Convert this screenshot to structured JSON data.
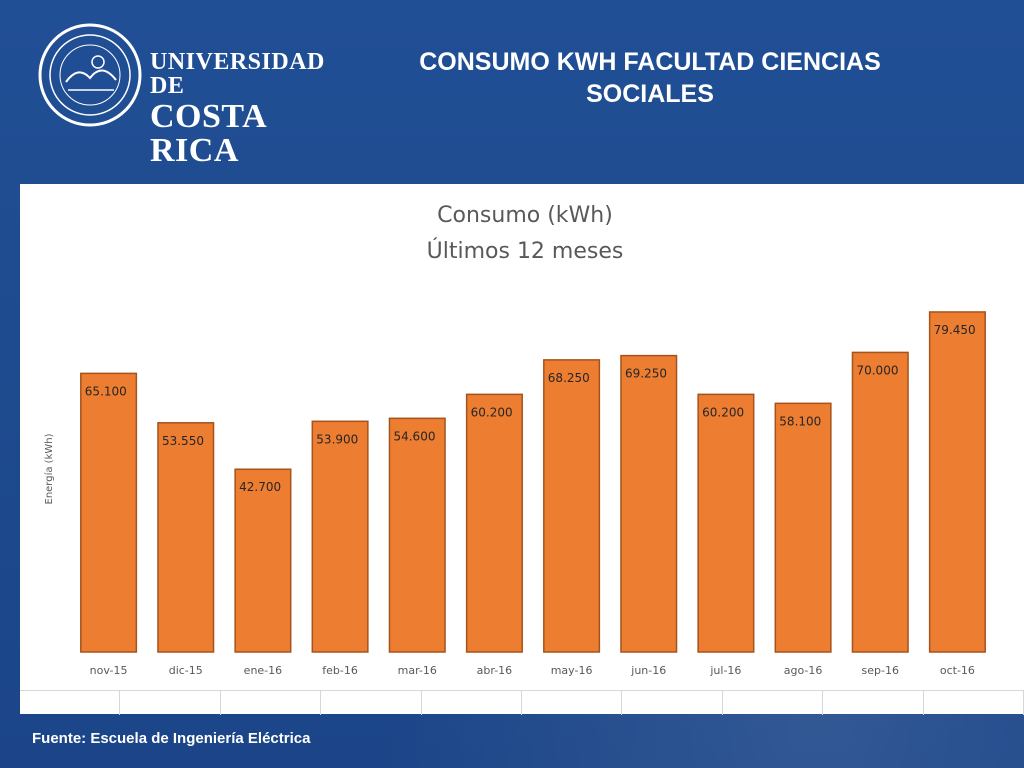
{
  "header": {
    "logo_line1": "UNIVERSIDAD DE",
    "logo_line2": "COSTA RICA",
    "slide_title": "CONSUMO KWH FACULTAD CIENCIAS SOCIALES"
  },
  "colors": {
    "background": "#1d4a8f",
    "bar": "#ed7d31",
    "bar_border": "#a5531d",
    "text_dark": "#404040"
  },
  "chart_data": {
    "type": "bar",
    "title": "Consumo (kWh)",
    "subtitle": "Últimos 12 meses",
    "ylabel": "Energía (kWh)",
    "xlabel": "",
    "categories": [
      "nov-15",
      "dic-15",
      "ene-16",
      "feb-16",
      "mar-16",
      "abr-16",
      "may-16",
      "jun-16",
      "jul-16",
      "ago-16",
      "sep-16",
      "oct-16"
    ],
    "values": [
      65100,
      53550,
      42700,
      53900,
      54600,
      60200,
      68250,
      69250,
      60200,
      58100,
      70000,
      79450
    ],
    "value_labels": [
      "65.100",
      "53.550",
      "42.700",
      "53.900",
      "54.600",
      "60.200",
      "68.250",
      "69.250",
      "60.200",
      "58.100",
      "70.000",
      "79.450"
    ],
    "ylim": [
      0,
      100000
    ],
    "grid": false,
    "legend": "none"
  },
  "footer": {
    "source": "Fuente: Escuela de Ingeniería Eléctrica"
  }
}
